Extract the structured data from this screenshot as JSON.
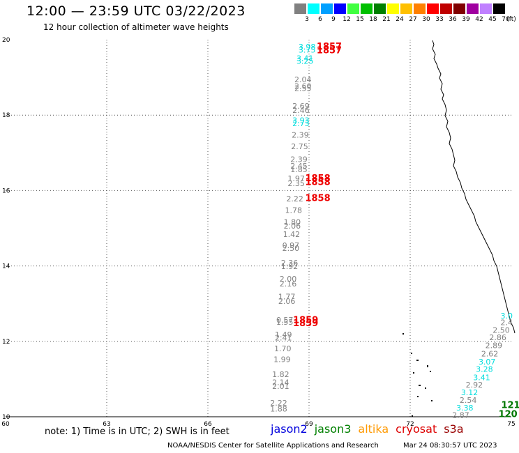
{
  "header": {
    "title": "12:00 — 23:59 UTC 03/22/2023",
    "subtitle": "12 hour collection of altimeter wave heights"
  },
  "legend": {
    "unit": "(ft)",
    "bins": [
      {
        "label": "3",
        "color": "#808080"
      },
      {
        "label": "6",
        "color": "#00ffff"
      },
      {
        "label": "9",
        "color": "#00a0ff"
      },
      {
        "label": "12",
        "color": "#0000ff"
      },
      {
        "label": "15",
        "color": "#40ff40"
      },
      {
        "label": "18",
        "color": "#00c000"
      },
      {
        "label": "21",
        "color": "#008000"
      },
      {
        "label": "24",
        "color": "#ffff00"
      },
      {
        "label": "27",
        "color": "#ffc000"
      },
      {
        "label": "30",
        "color": "#ff8000"
      },
      {
        "label": "33",
        "color": "#ff0000"
      },
      {
        "label": "36",
        "color": "#c00000"
      },
      {
        "label": "39",
        "color": "#800000"
      },
      {
        "label": "42",
        "color": "#a000a0"
      },
      {
        "label": "45",
        "color": "#c080ff"
      },
      {
        "label": "70",
        "color": "#000000"
      }
    ]
  },
  "map": {
    "lon_ticks": [
      "60",
      "63",
      "66",
      "69",
      "72",
      "75"
    ],
    "lat_ticks": [
      "10",
      "12",
      "14",
      "16",
      "18",
      "20"
    ],
    "lon_range": [
      60,
      75
    ],
    "lat_range": [
      10,
      20
    ],
    "grid": true,
    "observations": [
      {
        "lon": 68.94,
        "lat": 19.74,
        "text": "3.98",
        "color": "#00dddd"
      },
      {
        "lon": 68.94,
        "lat": 19.66,
        "text": "3.75",
        "color": "#00dddd"
      },
      {
        "lon": 68.88,
        "lat": 19.44,
        "text": "3.41",
        "color": "#00dddd"
      },
      {
        "lon": 68.88,
        "lat": 19.36,
        "text": "3.25",
        "color": "#00dddd"
      },
      {
        "lon": 68.82,
        "lat": 18.87,
        "text": "2.04",
        "color": "#808080"
      },
      {
        "lon": 68.82,
        "lat": 18.7,
        "text": "2.60",
        "color": "#808080"
      },
      {
        "lon": 68.82,
        "lat": 18.64,
        "text": "2.55",
        "color": "#808080"
      },
      {
        "lon": 68.76,
        "lat": 18.17,
        "text": "2.69",
        "color": "#808080"
      },
      {
        "lon": 68.76,
        "lat": 18.06,
        "text": "2.46",
        "color": "#808080"
      },
      {
        "lon": 68.76,
        "lat": 17.79,
        "text": "3.93",
        "color": "#00dddd"
      },
      {
        "lon": 68.76,
        "lat": 17.71,
        "text": "2.73",
        "color": "#00dddd"
      },
      {
        "lon": 68.74,
        "lat": 17.4,
        "text": "2.39",
        "color": "#808080"
      },
      {
        "lon": 68.72,
        "lat": 17.1,
        "text": "2.75",
        "color": "#808080"
      },
      {
        "lon": 68.7,
        "lat": 16.76,
        "text": "2.39",
        "color": "#808080"
      },
      {
        "lon": 68.7,
        "lat": 16.58,
        "text": "2.45",
        "color": "#808080"
      },
      {
        "lon": 68.7,
        "lat": 16.49,
        "text": "1.85",
        "color": "#808080"
      },
      {
        "lon": 68.62,
        "lat": 16.25,
        "text": "1.97",
        "color": "#808080"
      },
      {
        "lon": 68.62,
        "lat": 16.12,
        "text": "2.35",
        "color": "#808080"
      },
      {
        "lon": 68.58,
        "lat": 15.71,
        "text": "2.22",
        "color": "#808080"
      },
      {
        "lon": 68.54,
        "lat": 15.41,
        "text": "1.78",
        "color": "#808080"
      },
      {
        "lon": 68.5,
        "lat": 15.09,
        "text": "1.80",
        "color": "#808080"
      },
      {
        "lon": 68.5,
        "lat": 14.99,
        "text": "2.06",
        "color": "#808080"
      },
      {
        "lon": 68.48,
        "lat": 14.77,
        "text": "1.42",
        "color": "#808080"
      },
      {
        "lon": 68.46,
        "lat": 14.47,
        "text": "0.97",
        "color": "#808080"
      },
      {
        "lon": 68.46,
        "lat": 14.4,
        "text": "2.50",
        "color": "#808080"
      },
      {
        "lon": 68.42,
        "lat": 14.01,
        "text": "2.36",
        "color": "#808080"
      },
      {
        "lon": 68.42,
        "lat": 13.92,
        "text": "1.92",
        "color": "#808080"
      },
      {
        "lon": 68.38,
        "lat": 13.59,
        "text": "2.00",
        "color": "#808080"
      },
      {
        "lon": 68.38,
        "lat": 13.46,
        "text": "2.16",
        "color": "#808080"
      },
      {
        "lon": 68.34,
        "lat": 13.11,
        "text": "1.77",
        "color": "#808080"
      },
      {
        "lon": 68.34,
        "lat": 12.99,
        "text": "2.06",
        "color": "#808080"
      },
      {
        "lon": 68.28,
        "lat": 12.5,
        "text": "0.57",
        "color": "#808080"
      },
      {
        "lon": 68.28,
        "lat": 12.44,
        "text": "1.55",
        "color": "#808080"
      },
      {
        "lon": 68.24,
        "lat": 12.11,
        "text": "1.49",
        "color": "#808080"
      },
      {
        "lon": 68.24,
        "lat": 12.02,
        "text": "2.41",
        "color": "#808080"
      },
      {
        "lon": 68.22,
        "lat": 11.74,
        "text": "1.70",
        "color": "#808080"
      },
      {
        "lon": 68.2,
        "lat": 11.45,
        "text": "1.99",
        "color": "#808080"
      },
      {
        "lon": 68.16,
        "lat": 11.05,
        "text": "1.82",
        "color": "#808080"
      },
      {
        "lon": 68.16,
        "lat": 10.84,
        "text": "2.14",
        "color": "#808080"
      },
      {
        "lon": 68.16,
        "lat": 10.74,
        "text": "2.01",
        "color": "#808080"
      },
      {
        "lon": 68.1,
        "lat": 10.3,
        "text": "2.22",
        "color": "#808080"
      },
      {
        "lon": 68.1,
        "lat": 10.14,
        "text": "1.88",
        "color": "#808080"
      },
      {
        "lon": 74.86,
        "lat": 12.61,
        "text": "3.0",
        "color": "#00dddd"
      },
      {
        "lon": 74.86,
        "lat": 12.43,
        "text": "2.4",
        "color": "#808080"
      },
      {
        "lon": 74.7,
        "lat": 12.23,
        "text": "2.50",
        "color": "#808080"
      },
      {
        "lon": 74.6,
        "lat": 12.03,
        "text": "2.86",
        "color": "#808080"
      },
      {
        "lon": 74.48,
        "lat": 11.82,
        "text": "2.89",
        "color": "#808080"
      },
      {
        "lon": 74.36,
        "lat": 11.6,
        "text": "2.62",
        "color": "#808080"
      },
      {
        "lon": 74.28,
        "lat": 11.39,
        "text": "3.07",
        "color": "#00dddd"
      },
      {
        "lon": 74.2,
        "lat": 11.19,
        "text": "3.28",
        "color": "#00dddd"
      },
      {
        "lon": 74.12,
        "lat": 10.97,
        "text": "3.41",
        "color": "#00dddd"
      },
      {
        "lon": 73.9,
        "lat": 10.78,
        "text": "2.92",
        "color": "#808080"
      },
      {
        "lon": 73.76,
        "lat": 10.57,
        "text": "3.12",
        "color": "#00dddd"
      },
      {
        "lon": 73.72,
        "lat": 10.37,
        "text": "2.54",
        "color": "#808080"
      },
      {
        "lon": 73.62,
        "lat": 10.17,
        "text": "3.38",
        "color": "#00dddd"
      },
      {
        "lon": 73.5,
        "lat": 9.97,
        "text": "2.87",
        "color": "#808080"
      }
    ],
    "pass_labels": [
      {
        "lon": 69.6,
        "lat": 19.74,
        "text": "1857",
        "color": "#ee0000"
      },
      {
        "lon": 69.6,
        "lat": 19.64,
        "text": "1857",
        "color": "#ee0000"
      },
      {
        "lon": 69.26,
        "lat": 16.25,
        "text": "1858",
        "color": "#ee0000"
      },
      {
        "lon": 69.26,
        "lat": 16.15,
        "text": "1858",
        "color": "#ee0000"
      },
      {
        "lon": 69.26,
        "lat": 15.72,
        "text": "1858",
        "color": "#ee0000"
      },
      {
        "lon": 68.9,
        "lat": 12.49,
        "text": "1859",
        "color": "#ee0000"
      },
      {
        "lon": 68.9,
        "lat": 12.4,
        "text": "1859",
        "color": "#ee0000"
      },
      {
        "lon": 74.98,
        "lat": 10.23,
        "text": "121",
        "color": "#007700"
      },
      {
        "lon": 74.9,
        "lat": 9.99,
        "text": "120",
        "color": "#007700"
      }
    ]
  },
  "footer": {
    "note": "note: 1) Time is in UTC; 2) SWH is in feet",
    "satellites": [
      {
        "name": "jason2",
        "color": "#0000dd"
      },
      {
        "name": "jason3",
        "color": "#008000"
      },
      {
        "name": "altika",
        "color": "#ff9900"
      },
      {
        "name": "cryosat",
        "color": "#dd0000"
      },
      {
        "name": "s3a",
        "color": "#990000"
      }
    ],
    "credit": "NOAA/NESDIS Center for Satellite Applications and Research",
    "timestamp": "Mar 24 08:30:57 UTC 2023"
  }
}
